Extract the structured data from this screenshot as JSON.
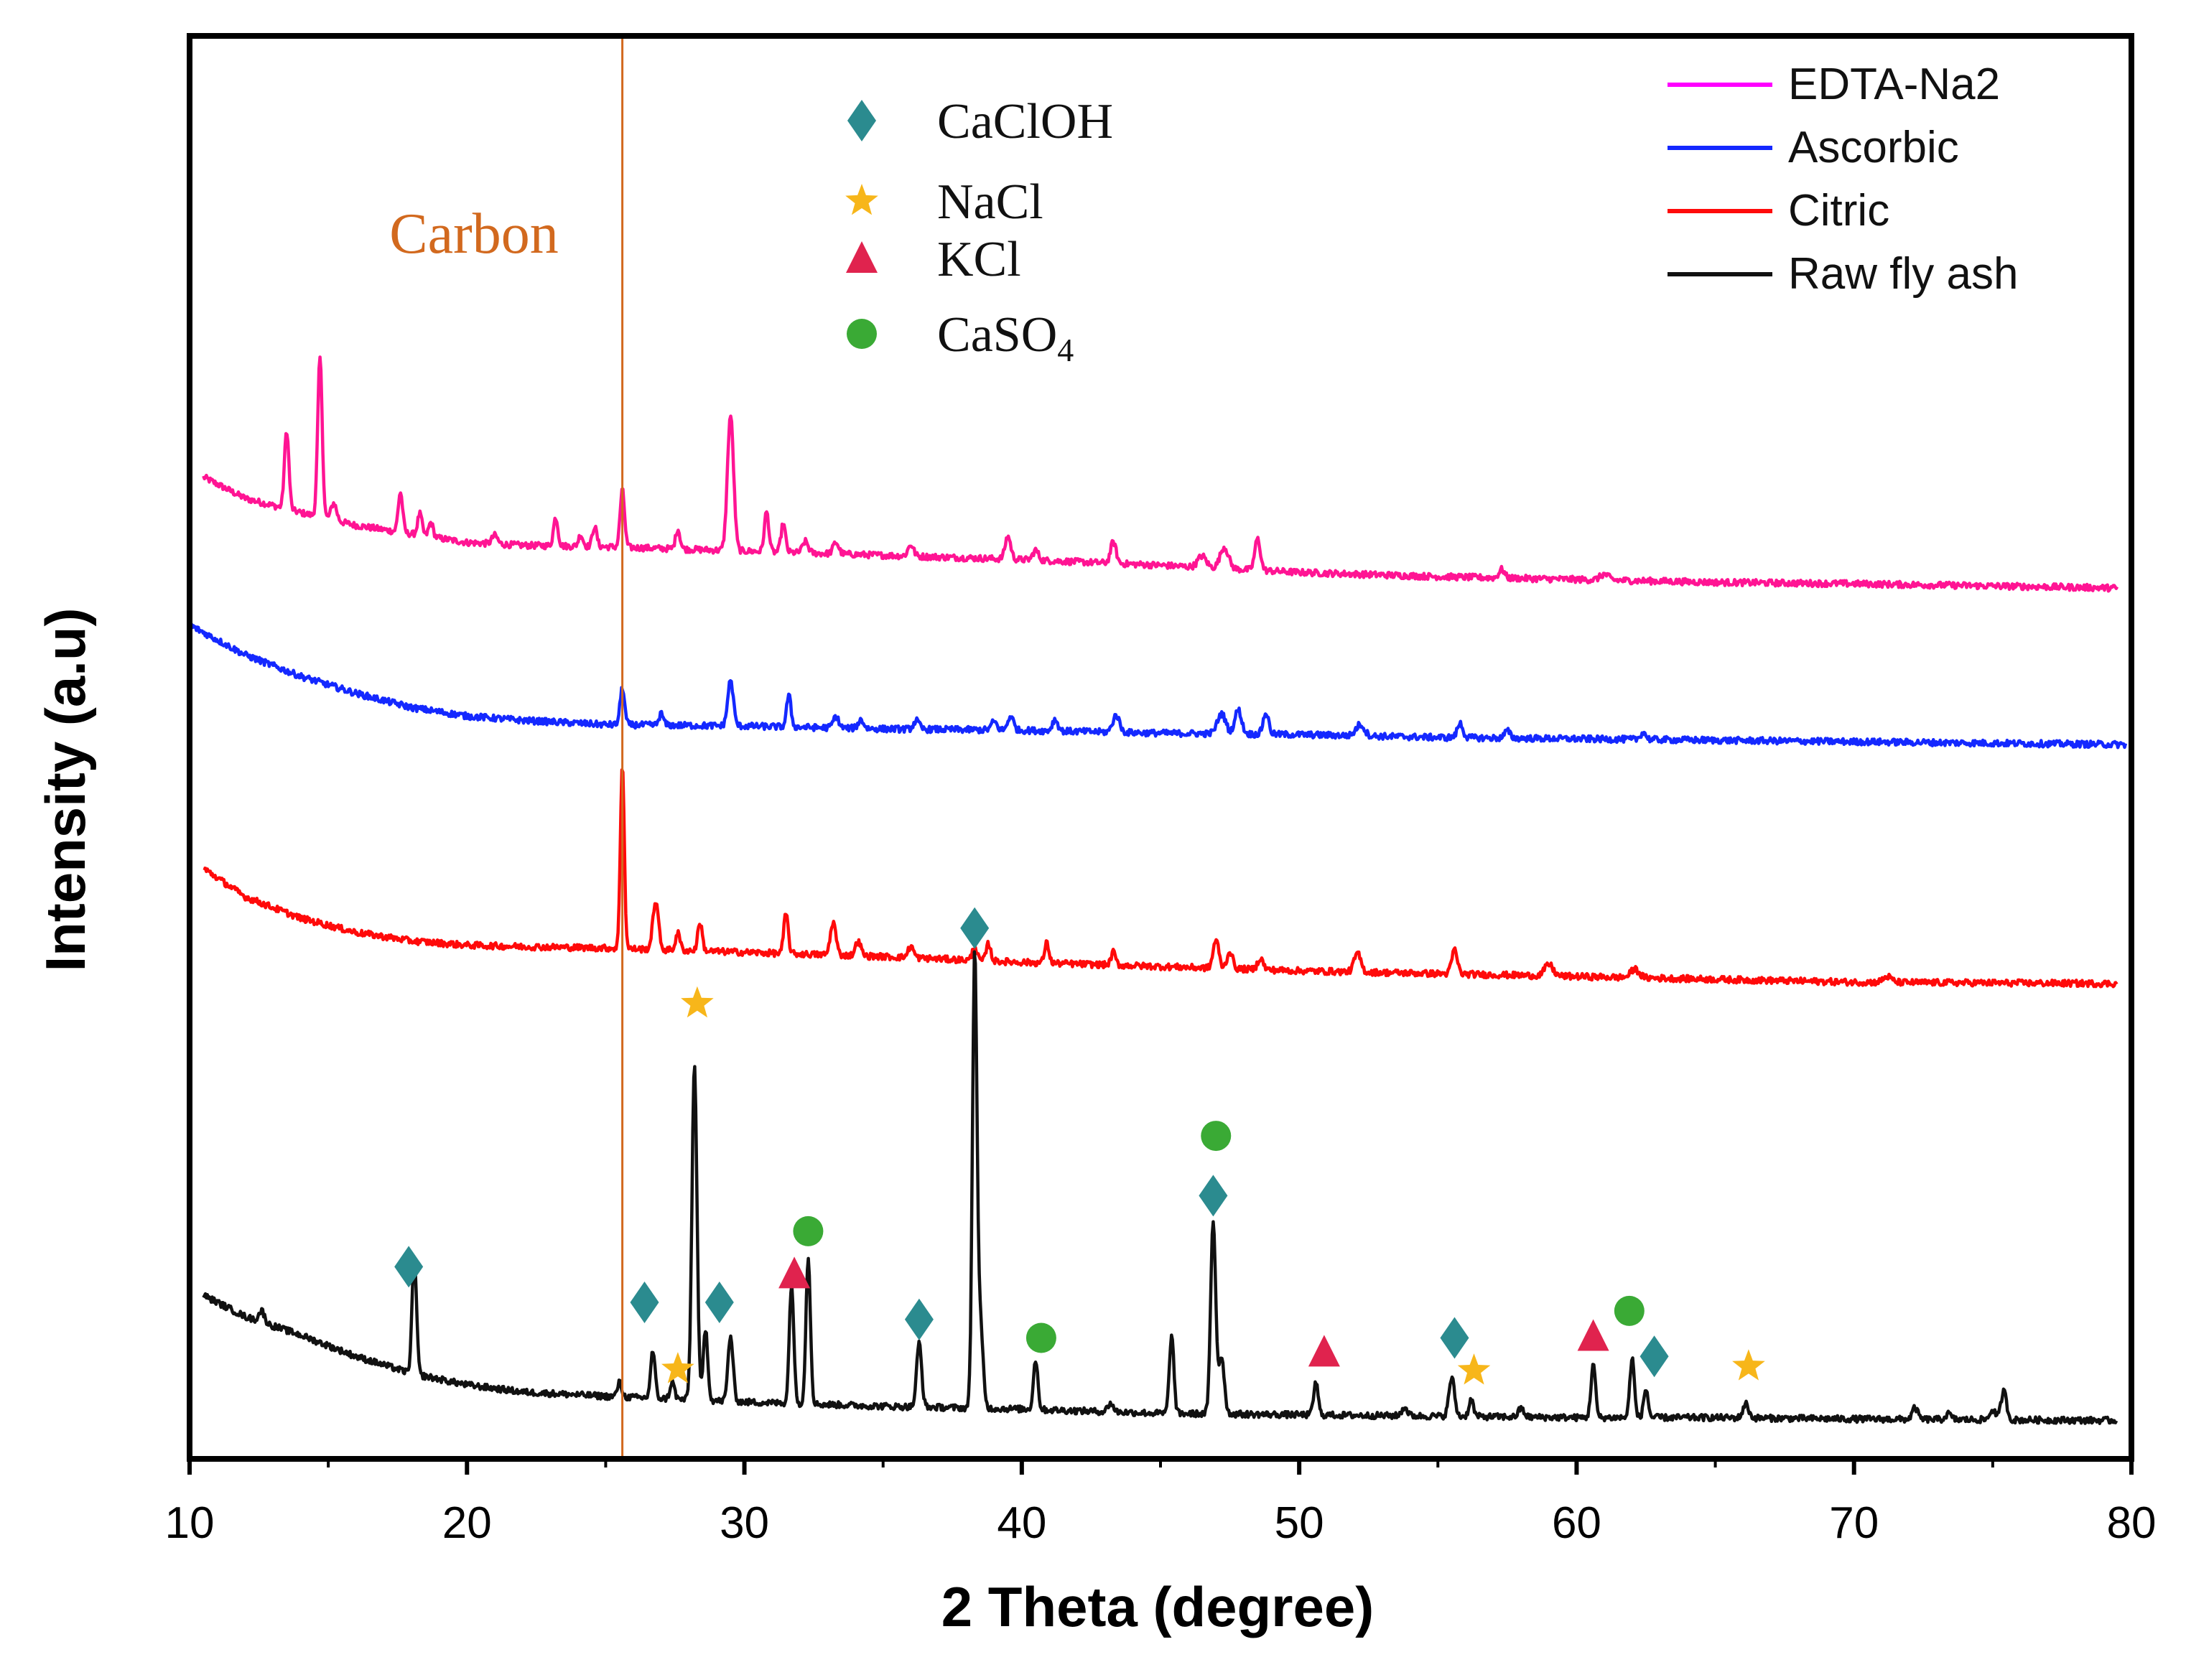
{
  "chart_data": {
    "type": "line",
    "title": "",
    "xlabel": "2 Theta (degree)",
    "ylabel": "Intensity (a.u)",
    "xlim": [
      10,
      80
    ],
    "ylim": [
      0,
      100
    ],
    "xticks": [
      10,
      20,
      30,
      40,
      50,
      60,
      70,
      80
    ],
    "grid": false,
    "legend_position": "top-right",
    "vertical_line": {
      "x": 25.6,
      "label": "Carbon",
      "color": "#d2691e"
    },
    "series": [
      {
        "name": "EDTA-Na2",
        "color": "#ff1493",
        "legend_color": "#ff00ff",
        "baseline": [
          [
            10.5,
            69
          ],
          [
            12,
            67.5
          ],
          [
            14,
            66.5
          ],
          [
            16,
            65.6
          ],
          [
            18,
            65
          ],
          [
            20,
            64.4
          ],
          [
            22,
            64.2
          ],
          [
            25,
            64.1
          ],
          [
            30,
            63.8
          ],
          [
            35,
            63.5
          ],
          [
            40,
            63.2
          ],
          [
            45,
            62.8
          ],
          [
            50,
            62.3
          ],
          [
            55,
            62
          ],
          [
            60,
            61.8
          ],
          [
            65,
            61.6
          ],
          [
            70,
            61.5
          ],
          [
            79.5,
            61.2
          ]
        ],
        "peaks": [
          [
            13.5,
            5.5,
            0.08
          ],
          [
            14.7,
            11.2,
            0.08
          ],
          [
            15.2,
            1.2,
            0.1
          ],
          [
            17.6,
            2.8,
            0.08
          ],
          [
            18.3,
            1.5,
            0.08
          ],
          [
            18.7,
            1.0,
            0.08
          ],
          [
            21,
            0.6,
            0.1
          ],
          [
            23.2,
            2.0,
            0.08
          ],
          [
            24.1,
            0.8,
            0.08
          ],
          [
            24.6,
            1.4,
            0.08
          ],
          [
            25.6,
            4.0,
            0.08
          ],
          [
            27.6,
            1.4,
            0.08
          ],
          [
            29.5,
            9.5,
            0.11
          ],
          [
            30.8,
            2.8,
            0.08
          ],
          [
            31.4,
            2.0,
            0.08
          ],
          [
            32.2,
            0.8,
            0.1
          ],
          [
            33.3,
            0.8,
            0.1
          ],
          [
            36,
            0.8,
            0.1
          ],
          [
            39.5,
            1.6,
            0.1
          ],
          [
            40.5,
            0.7,
            0.1
          ],
          [
            43.3,
            1.5,
            0.1
          ],
          [
            46.5,
            0.8,
            0.15
          ],
          [
            47.3,
            1.5,
            0.15
          ],
          [
            48.5,
            2.2,
            0.1
          ],
          [
            57.3,
            0.6,
            0.1
          ],
          [
            61,
            0.4,
            0.15
          ]
        ]
      },
      {
        "name": "Ascorbic",
        "color": "#1428ff",
        "legend_color": "#1428ff",
        "baseline": [
          [
            10,
            58.6
          ],
          [
            12,
            56.5
          ],
          [
            14,
            55
          ],
          [
            16,
            53.8
          ],
          [
            18,
            52.8
          ],
          [
            20,
            52.2
          ],
          [
            22,
            51.9
          ],
          [
            25,
            51.6
          ],
          [
            30,
            51.5
          ],
          [
            35,
            51.3
          ],
          [
            40,
            51.2
          ],
          [
            45,
            51
          ],
          [
            50,
            50.9
          ],
          [
            55,
            50.7
          ],
          [
            60,
            50.6
          ],
          [
            65,
            50.5
          ],
          [
            70,
            50.4
          ],
          [
            79.8,
            50.2
          ]
        ],
        "peaks": [
          [
            25.6,
            2.6,
            0.08
          ],
          [
            27,
            0.8,
            0.08
          ],
          [
            29.5,
            3.2,
            0.1
          ],
          [
            31.6,
            2.2,
            0.08
          ],
          [
            33.3,
            0.8,
            0.1
          ],
          [
            34.2,
            0.6,
            0.1
          ],
          [
            36.2,
            0.6,
            0.1
          ],
          [
            39,
            0.6,
            0.1
          ],
          [
            39.6,
            1.0,
            0.1
          ],
          [
            41.2,
            0.8,
            0.1
          ],
          [
            43.4,
            1.2,
            0.12
          ],
          [
            47.2,
            1.4,
            0.15
          ],
          [
            47.8,
            1.7,
            0.12
          ],
          [
            48.8,
            1.5,
            0.1
          ],
          [
            52.2,
            0.8,
            0.15
          ],
          [
            55.8,
            1.0,
            0.1
          ],
          [
            57.5,
            0.5,
            0.1
          ],
          [
            62.4,
            0.5,
            0.1
          ]
        ]
      },
      {
        "name": "Citric",
        "color": "#ff0a0a",
        "legend_color": "#ff0a0a",
        "baseline": [
          [
            10.5,
            41.5
          ],
          [
            12,
            39.5
          ],
          [
            14,
            38
          ],
          [
            16,
            37
          ],
          [
            18,
            36.4
          ],
          [
            20,
            36.1
          ],
          [
            22,
            36
          ],
          [
            25,
            35.9
          ],
          [
            30,
            35.6
          ],
          [
            35,
            35.3
          ],
          [
            40,
            34.9
          ],
          [
            45,
            34.6
          ],
          [
            50,
            34.3
          ],
          [
            55,
            34.1
          ],
          [
            60,
            33.9
          ],
          [
            65,
            33.7
          ],
          [
            70,
            33.5
          ],
          [
            79.5,
            33.4
          ]
        ],
        "peaks": [
          [
            25.6,
            13.0,
            0.07
          ],
          [
            26.8,
            3.4,
            0.1
          ],
          [
            27.6,
            1.2,
            0.08
          ],
          [
            28.4,
            2.0,
            0.08
          ],
          [
            31.5,
            2.8,
            0.08
          ],
          [
            33.2,
            2.3,
            0.1
          ],
          [
            34.1,
            1.0,
            0.1
          ],
          [
            36,
            0.8,
            0.1
          ],
          [
            38.3,
            1.0,
            0.08
          ],
          [
            38.8,
            1.2,
            0.08
          ],
          [
            40.9,
            1.4,
            0.08
          ],
          [
            43.3,
            0.9,
            0.08
          ],
          [
            47,
            2.0,
            0.1
          ],
          [
            47.5,
            1.2,
            0.1
          ],
          [
            48.6,
            0.8,
            0.1
          ],
          [
            52.1,
            1.3,
            0.12
          ],
          [
            55.6,
            1.7,
            0.1
          ],
          [
            59,
            0.8,
            0.15
          ],
          [
            62.1,
            0.6,
            0.15
          ],
          [
            71.2,
            0.4,
            0.15
          ]
        ]
      },
      {
        "name": "Raw fly ash",
        "color": "#111111",
        "legend_color": "#111111",
        "baseline": [
          [
            10.5,
            11.5
          ],
          [
            12,
            10
          ],
          [
            14,
            8.7
          ],
          [
            16,
            7.2
          ],
          [
            18,
            6
          ],
          [
            20,
            5.2
          ],
          [
            22,
            4.7
          ],
          [
            25,
            4.4
          ],
          [
            30,
            4.0
          ],
          [
            35,
            3.7
          ],
          [
            40,
            3.5
          ],
          [
            45,
            3.2
          ],
          [
            50,
            3.1
          ],
          [
            55,
            3.0
          ],
          [
            60,
            2.9
          ],
          [
            65,
            2.9
          ],
          [
            70,
            2.8
          ],
          [
            79.5,
            2.7
          ]
        ],
        "peaks": [
          [
            12.6,
            0.8,
            0.1
          ],
          [
            18.1,
            8.2,
            0.08
          ],
          [
            25.5,
            1.0,
            0.08
          ],
          [
            26.7,
            3.3,
            0.08
          ],
          [
            27.4,
            1.2,
            0.08
          ],
          [
            28.2,
            23.5,
            0.09
          ],
          [
            28.6,
            5.0,
            0.08
          ],
          [
            29.5,
            4.6,
            0.09
          ],
          [
            31.7,
            8.4,
            0.08
          ],
          [
            32.3,
            10.3,
            0.08
          ],
          [
            36.3,
            4.5,
            0.09
          ],
          [
            38.3,
            31.5,
            0.08
          ],
          [
            38.5,
            6.0,
            0.1
          ],
          [
            40.5,
            3.5,
            0.08
          ],
          [
            43.2,
            0.6,
            0.1
          ],
          [
            45.4,
            5.5,
            0.08
          ],
          [
            46.9,
            13.5,
            0.09
          ],
          [
            47.2,
            4.0,
            0.1
          ],
          [
            50.6,
            2.3,
            0.08
          ],
          [
            53.8,
            0.6,
            0.1
          ],
          [
            55.5,
            2.7,
            0.1
          ],
          [
            56.2,
            1.2,
            0.08
          ],
          [
            58,
            0.6,
            0.1
          ],
          [
            60.6,
            3.8,
            0.08
          ],
          [
            62,
            4.2,
            0.08
          ],
          [
            62.5,
            2.0,
            0.08
          ],
          [
            66.1,
            1.0,
            0.1
          ],
          [
            72.2,
            0.8,
            0.1
          ],
          [
            73.4,
            0.4,
            0.1
          ],
          [
            75,
            0.7,
            0.1
          ],
          [
            75.4,
            2.0,
            0.1
          ]
        ]
      }
    ],
    "phases": [
      {
        "name": "CaClOH",
        "label_main": "CaClOH",
        "label_sub": "",
        "marker": "diamond",
        "color": "#2b8b8f"
      },
      {
        "name": "NaCl",
        "label_main": "NaCl",
        "label_sub": "",
        "marker": "star",
        "color": "#f7b61a"
      },
      {
        "name": "KCl",
        "label_main": "KCl",
        "label_sub": "",
        "marker": "triangle",
        "color": "#e0234e"
      },
      {
        "name": "CaSO4",
        "label_main": "CaSO",
        "label_sub": "4",
        "marker": "circle",
        "color": "#3aaa35"
      }
    ],
    "phase_markers": [
      {
        "phase": "CaClOH",
        "x": 17.9,
        "y": 13.5
      },
      {
        "phase": "CaClOH",
        "x": 26.4,
        "y": 11.0
      },
      {
        "phase": "CaClOH",
        "x": 29.1,
        "y": 11.0
      },
      {
        "phase": "CaClOH",
        "x": 36.3,
        "y": 9.8
      },
      {
        "phase": "CaClOH",
        "x": 38.3,
        "y": 37.3
      },
      {
        "phase": "CaClOH",
        "x": 46.9,
        "y": 18.5
      },
      {
        "phase": "CaClOH",
        "x": 55.6,
        "y": 8.5
      },
      {
        "phase": "CaClOH",
        "x": 62.8,
        "y": 7.2
      },
      {
        "phase": "NaCl",
        "x": 28.3,
        "y": 32.0
      },
      {
        "phase": "NaCl",
        "x": 27.6,
        "y": 6.3
      },
      {
        "phase": "NaCl",
        "x": 56.3,
        "y": 6.2
      },
      {
        "phase": "NaCl",
        "x": 66.2,
        "y": 6.5
      },
      {
        "phase": "KCl",
        "x": 31.8,
        "y": 13.0
      },
      {
        "phase": "KCl",
        "x": 50.9,
        "y": 7.5
      },
      {
        "phase": "KCl",
        "x": 60.6,
        "y": 8.6
      },
      {
        "phase": "CaSO4",
        "x": 32.3,
        "y": 16.0
      },
      {
        "phase": "CaSO4",
        "x": 40.7,
        "y": 8.5
      },
      {
        "phase": "CaSO4",
        "x": 47.0,
        "y": 22.7
      },
      {
        "phase": "CaSO4",
        "x": 61.9,
        "y": 10.4
      }
    ]
  }
}
